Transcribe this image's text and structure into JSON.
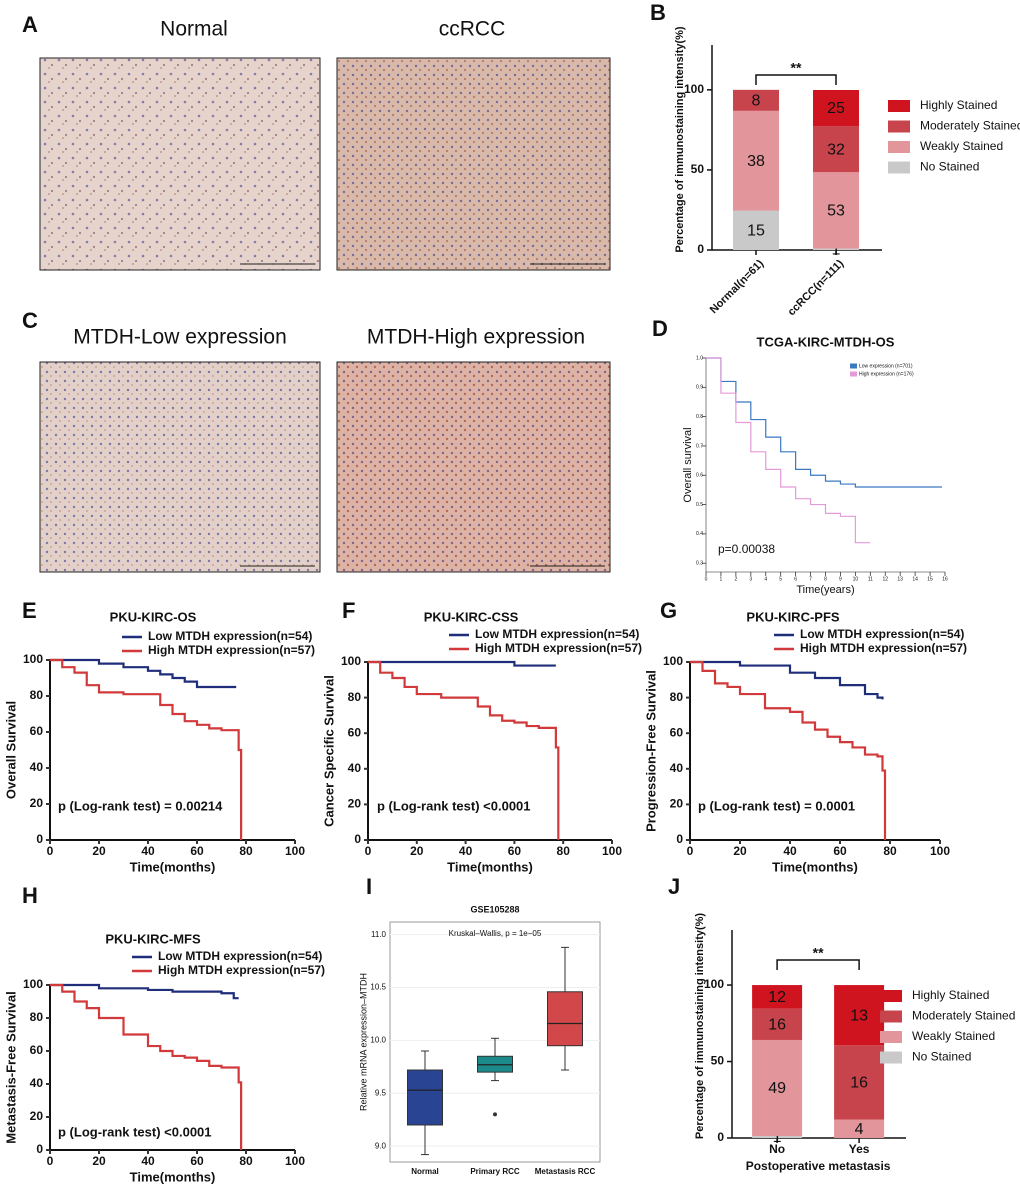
{
  "figure": {
    "panel_labels": [
      "A",
      "B",
      "C",
      "D",
      "E",
      "F",
      "G",
      "H",
      "I",
      "J"
    ],
    "image_titles": [
      "Normal",
      "ccRCC",
      "MTDH-Low expression",
      "MTDH-High expression"
    ]
  },
  "chart_data": [
    {
      "type": "bar",
      "stacked": true,
      "categories": [
        "Normal(n=61)",
        "ccRCC(n=111)"
      ],
      "ylabel": "Percentage of immunostaining intensity(%)",
      "ylim": [
        0,
        128
      ],
      "yticks": [
        0,
        50,
        100
      ],
      "annotation": "**",
      "series": [
        {
          "name": "No Stained",
          "color": "#c9c9c9",
          "values": [
            24.6,
            0.9
          ],
          "counts": [
            15,
            1
          ]
        },
        {
          "name": "Weakly Stained",
          "color": "#e2959b",
          "values": [
            62.3,
            47.7
          ],
          "counts": [
            38,
            53
          ]
        },
        {
          "name": "Moderately Stained",
          "color": "#c8444d",
          "values": [
            13.1,
            28.8
          ],
          "counts": [
            8,
            32
          ]
        },
        {
          "name": "Highly Stained",
          "color": "#d0141f",
          "values": [
            0,
            22.5
          ],
          "counts": [
            null,
            25
          ]
        }
      ]
    },
    {
      "type": "line",
      "step": true,
      "title": "TCGA-KIRC-MTDH-OS",
      "xlabel": "Time(years)",
      "ylabel": "Overall survival",
      "annotation": "p=0.00038",
      "xlim": [
        0,
        16
      ],
      "xticks": [
        0,
        1,
        2,
        3,
        4,
        5,
        6,
        7,
        8,
        9,
        10,
        11,
        12,
        13,
        14,
        15,
        16
      ],
      "ylim": [
        0.27,
        1.0
      ],
      "yticks": [
        0.3,
        0.4,
        0.5,
        0.6,
        0.7,
        0.8,
        0.9,
        {
          "value": 1.0,
          "label": "1.0"
        }
      ],
      "series": [
        {
          "name": "Low expression (n=701)",
          "color": "#3a78c2",
          "x": [
            0,
            1,
            2,
            3,
            4,
            5,
            6,
            7,
            8,
            9,
            10,
            12,
            14,
            15.8
          ],
          "values": [
            1.0,
            0.92,
            0.85,
            0.79,
            0.73,
            0.68,
            0.62,
            0.6,
            0.58,
            0.57,
            0.56,
            0.56,
            0.56,
            0.56
          ]
        },
        {
          "name": "High expression (n=176)",
          "color": "#e39ad9",
          "x": [
            0,
            1,
            2,
            3,
            4,
            5,
            6,
            7,
            8,
            9,
            10,
            11
          ],
          "values": [
            1.0,
            0.88,
            0.78,
            0.68,
            0.62,
            0.56,
            0.52,
            0.5,
            0.47,
            0.46,
            0.37,
            0.37
          ]
        }
      ]
    },
    {
      "type": "line",
      "step": true,
      "title": "PKU-KIRC-OS",
      "xlabel": "Time(months)",
      "ylabel": "Overall Survival",
      "annotation": "p (Log-rank test) = 0.00214",
      "xlim": [
        0,
        100
      ],
      "xticks": [
        0,
        20,
        40,
        60,
        80,
        100
      ],
      "ylim": [
        0,
        100
      ],
      "yticks": [
        0,
        20,
        40,
        60,
        80,
        100
      ],
      "series": [
        {
          "name": "Low MTDH expression(n=54)",
          "color": "#1f2d7a",
          "x": [
            0,
            10,
            20,
            30,
            40,
            45,
            50,
            55,
            60,
            65,
            76
          ],
          "values": [
            100,
            100,
            98,
            96,
            94,
            92,
            90,
            88,
            85,
            85,
            85
          ]
        },
        {
          "name": "High MTDH expression(n=57)",
          "color": "#d2393a",
          "x": [
            0,
            5,
            10,
            15,
            20,
            30,
            40,
            45,
            50,
            55,
            60,
            65,
            70,
            75,
            77,
            78
          ],
          "values": [
            100,
            96,
            93,
            86,
            82,
            81,
            81,
            75,
            70,
            66,
            64,
            62,
            61,
            61,
            50,
            0
          ]
        }
      ]
    },
    {
      "type": "line",
      "step": true,
      "title": "PKU-KIRC-CSS",
      "xlabel": "Time(months)",
      "ylabel": "Cancer Specific Survival",
      "annotation": "p (Log-rank test) <0.0001",
      "xlim": [
        0,
        100
      ],
      "xticks": [
        0,
        20,
        40,
        60,
        80,
        100
      ],
      "ylim": [
        0,
        100
      ],
      "yticks": [
        0,
        20,
        40,
        60,
        80,
        100
      ],
      "series": [
        {
          "name": "Low MTDH expression(n=54)",
          "color": "#1f2d7a",
          "x": [
            0,
            10,
            20,
            40,
            60,
            77
          ],
          "values": [
            100,
            100,
            100,
            100,
            98,
            98
          ]
        },
        {
          "name": "High MTDH expression(n=57)",
          "color": "#d2393a",
          "x": [
            0,
            5,
            10,
            15,
            20,
            30,
            40,
            45,
            50,
            55,
            60,
            65,
            70,
            75,
            77,
            78
          ],
          "values": [
            100,
            94,
            91,
            86,
            82,
            80,
            80,
            75,
            70,
            67,
            66,
            64,
            63,
            63,
            52,
            0
          ]
        }
      ]
    },
    {
      "type": "line",
      "step": true,
      "title": "PKU-KIRC-PFS",
      "xlabel": "Time(months)",
      "ylabel": "Progression-Free Survival",
      "annotation": "p (Log-rank test) = 0.0001",
      "xlim": [
        0,
        100
      ],
      "xticks": [
        0,
        20,
        40,
        60,
        80,
        100
      ],
      "ylim": [
        0,
        100
      ],
      "yticks": [
        0,
        20,
        40,
        60,
        80,
        100
      ],
      "series": [
        {
          "name": "Low MTDH expression(n=54)",
          "color": "#1f2d7a",
          "x": [
            0,
            10,
            20,
            30,
            40,
            50,
            60,
            70,
            75,
            77
          ],
          "values": [
            100,
            100,
            98,
            98,
            94,
            91,
            87,
            82,
            80,
            79
          ]
        },
        {
          "name": "High MTDH expression(n=57)",
          "color": "#d2393a",
          "x": [
            0,
            5,
            10,
            15,
            20,
            30,
            40,
            45,
            50,
            55,
            60,
            65,
            70,
            75,
            77,
            78
          ],
          "values": [
            100,
            95,
            88,
            86,
            82,
            74,
            72,
            66,
            62,
            58,
            55,
            52,
            48,
            47,
            39,
            0
          ]
        }
      ]
    },
    {
      "type": "line",
      "step": true,
      "title": "PKU-KIRC-MFS",
      "xlabel": "Time(months)",
      "ylabel": "Metastasis-Free Survival",
      "annotation": "p (Log-rank test) <0.0001",
      "xlim": [
        0,
        100
      ],
      "xticks": [
        0,
        20,
        40,
        60,
        80,
        100
      ],
      "ylim": [
        0,
        100
      ],
      "yticks": [
        0,
        20,
        40,
        60,
        80,
        100
      ],
      "series": [
        {
          "name": "Low MTDH expression(n=54)",
          "color": "#1f2d7a",
          "x": [
            0,
            10,
            20,
            30,
            40,
            50,
            60,
            70,
            75,
            77
          ],
          "values": [
            100,
            100,
            98,
            98,
            97,
            96,
            96,
            95,
            92,
            92
          ]
        },
        {
          "name": "High MTDH expression(n=57)",
          "color": "#d2393a",
          "x": [
            0,
            5,
            10,
            15,
            20,
            30,
            40,
            45,
            50,
            55,
            60,
            65,
            70,
            75,
            77,
            78
          ],
          "values": [
            100,
            96,
            90,
            86,
            80,
            70,
            63,
            60,
            57,
            56,
            54,
            51,
            50,
            50,
            41,
            0
          ]
        }
      ]
    },
    {
      "type": "box",
      "title": "GSE105288",
      "annotation": "Kruskal–Wallis, p = 1e−05",
      "ylabel": "Relative mRNA expression–MTDH",
      "categories": [
        "Normal",
        "Primary RCC",
        "Metastasis RCC"
      ],
      "colors": [
        "#2a4494",
        "#1c8a8a",
        "#d2484a"
      ],
      "ylim": [
        8.85,
        11.12
      ],
      "yticks": [
        {
          "value": 9.0,
          "label": "9.0"
        },
        9.5,
        {
          "value": 10.0,
          "label": "10.0"
        },
        10.5,
        {
          "value": 11.0,
          "label": "11.0"
        }
      ],
      "boxes": [
        {
          "whislo": 8.92,
          "q1": 9.2,
          "med": 9.53,
          "q3": 9.72,
          "whishi": 9.9,
          "fliers": []
        },
        {
          "whislo": 9.62,
          "q1": 9.7,
          "med": 9.77,
          "q3": 9.85,
          "whishi": 10.02,
          "fliers": [
            9.3
          ]
        },
        {
          "whislo": 9.72,
          "q1": 9.95,
          "med": 10.16,
          "q3": 10.46,
          "whishi": 10.88,
          "fliers": []
        }
      ]
    },
    {
      "type": "bar",
      "stacked": true,
      "categories": [
        "No",
        "Yes"
      ],
      "xlabel": "Postoperative metastasis",
      "ylabel": "Percentage of immunostaining intensity(%)",
      "ylim": [
        0,
        136
      ],
      "yticks": [
        0,
        50,
        100
      ],
      "annotation": "**",
      "series": [
        {
          "name": "No Stained",
          "color": "#c9c9c9",
          "values": [
            1.3,
            0
          ],
          "counts": [
            1,
            null
          ]
        },
        {
          "name": "Weakly Stained",
          "color": "#e2959b",
          "values": [
            62.8,
            12.1
          ],
          "counts": [
            49,
            4
          ]
        },
        {
          "name": "Moderately Stained",
          "color": "#c8444d",
          "values": [
            20.5,
            48.5
          ],
          "counts": [
            16,
            16
          ]
        },
        {
          "name": "Highly Stained",
          "color": "#d0141f",
          "values": [
            15.4,
            39.4
          ],
          "counts": [
            12,
            13
          ]
        }
      ]
    }
  ]
}
